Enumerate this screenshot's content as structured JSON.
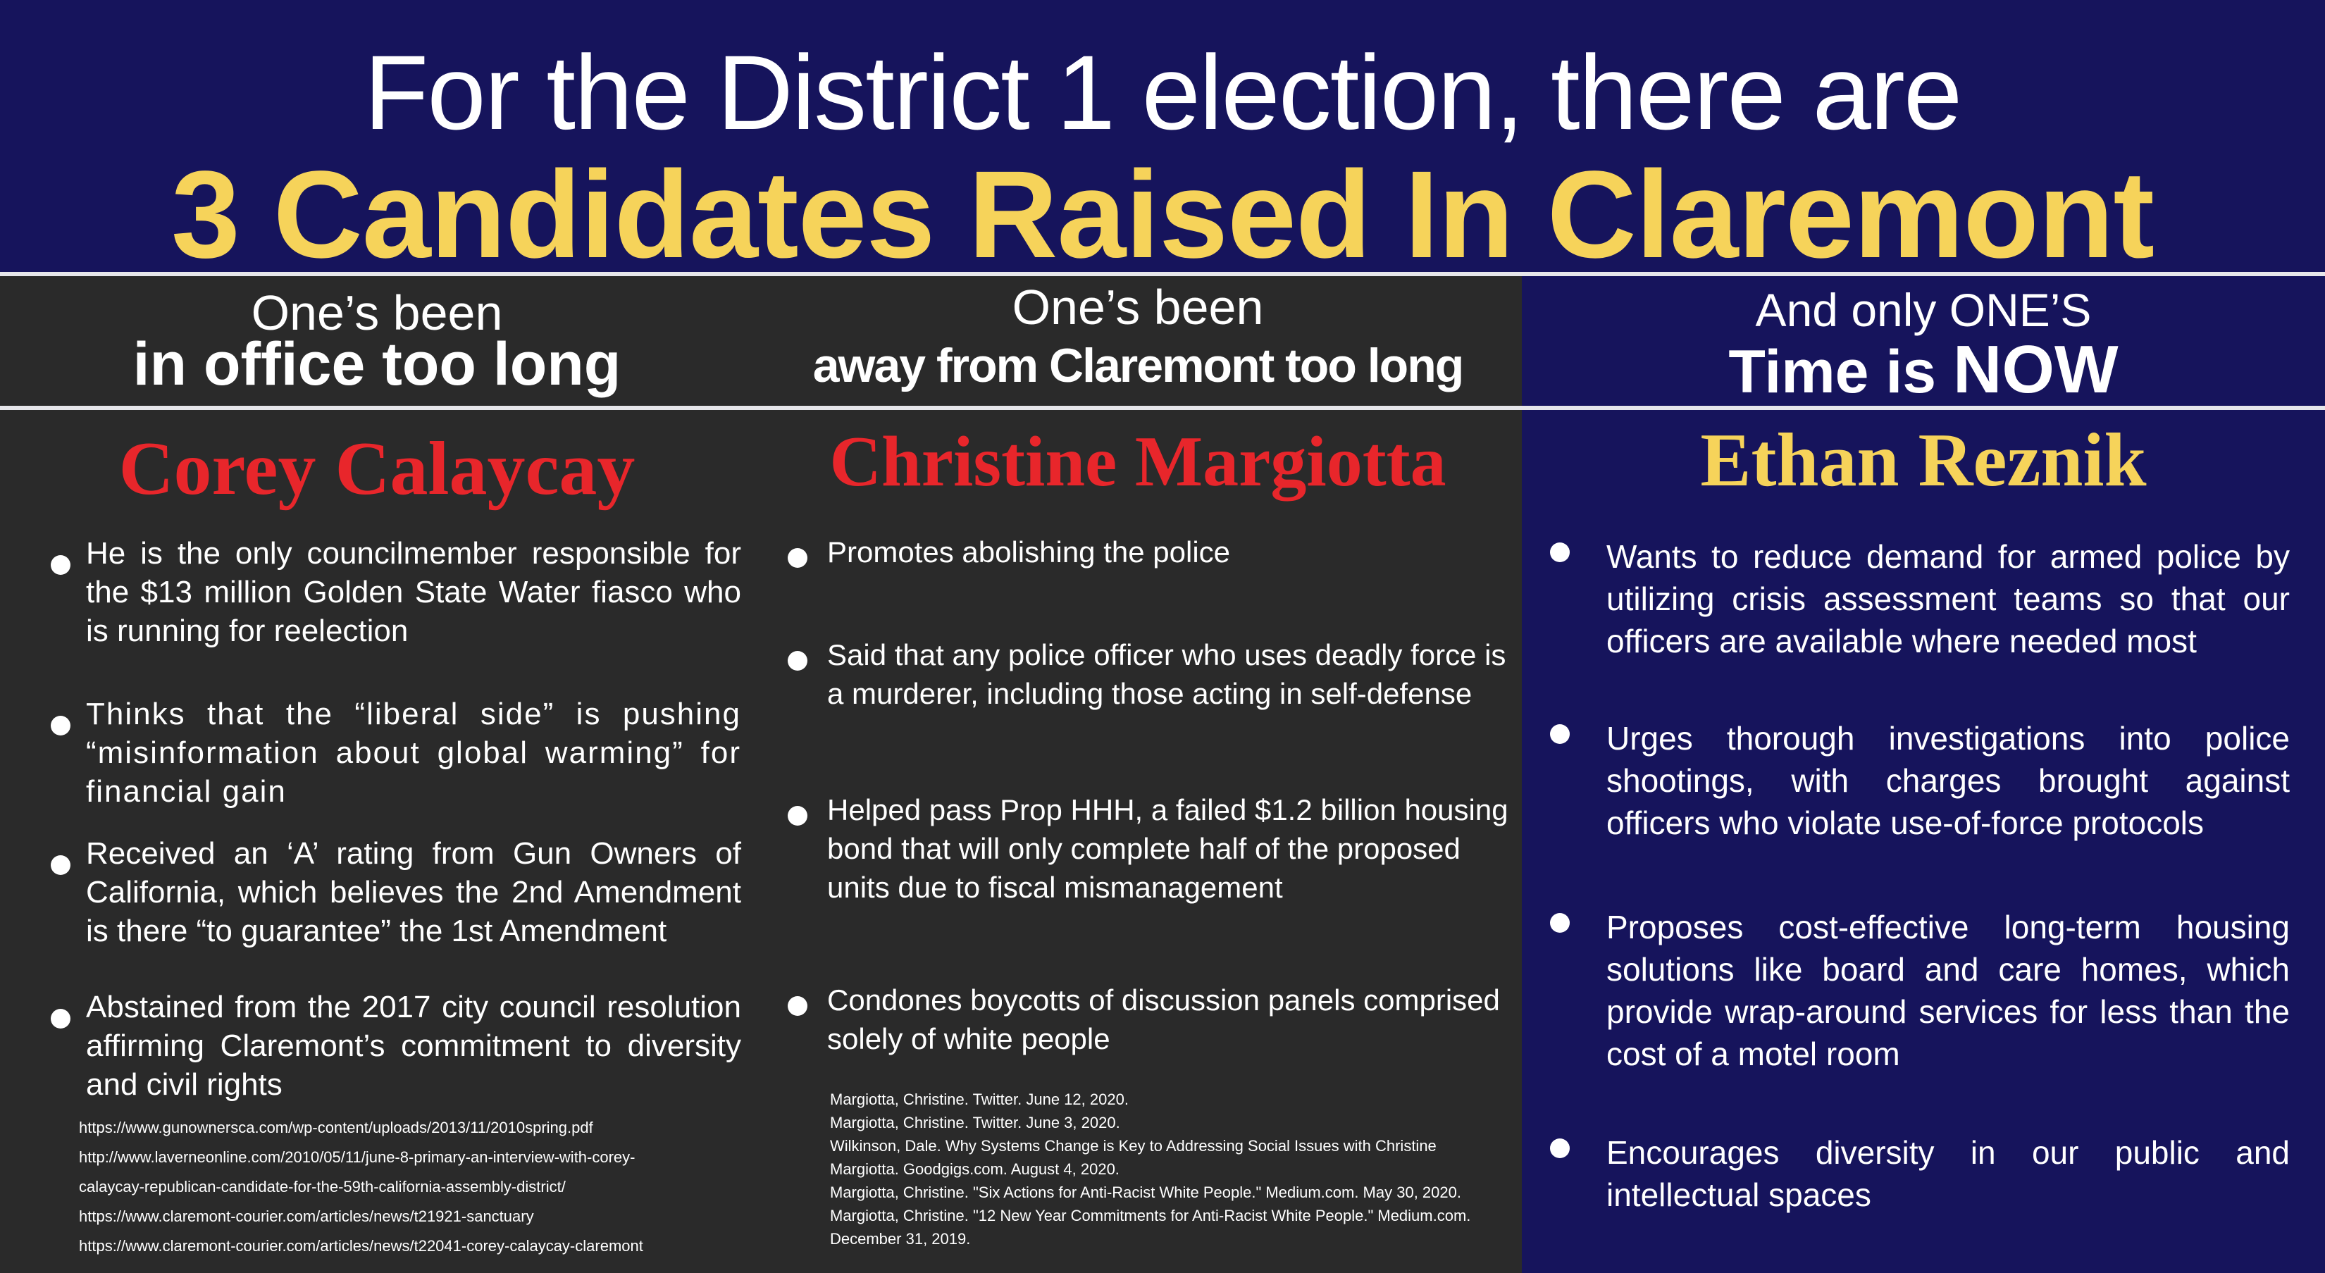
{
  "header": {
    "line1": "For the District 1 election, there are",
    "line2": "3 Candidates Raised In Claremont"
  },
  "colors": {
    "navy": "#16145c",
    "charcoal": "#2a2a2a",
    "gold": "#f6d35a",
    "red": "#e8262b",
    "white": "#ffffff"
  },
  "columns": [
    {
      "tagline1": "One’s been",
      "tagline2": "in office too long",
      "candidate": "Corey Calaycay",
      "bullets": [
        "He is the only councilmember responsible for the $13 million Golden State Water fiasco who is running for reelection",
        "Thinks that the “liberal side” is pushing “misinformation about global warming” for financial gain",
        "Received an ‘A’ rating from Gun Owners of California, which believes the 2nd Amendment is there “to guarantee” the 1st Amendment",
        "Abstained from the 2017 city council resolution affirming Claremont’s commitment to diversity and civil rights"
      ],
      "references": [
        "https://www.gunownersca.com/wp-content/uploads/2013/11/2010spring.pdf",
        "http://www.laverneonline.com/2010/05/11/june-8-primary-an-interview-with-corey-",
        "calaycay-republican-candidate-for-the-59th-california-assembly-district/",
        "https://www.claremont-courier.com/articles/news/t21921-sanctuary",
        "https://www.claremont-courier.com/articles/news/t22041-corey-calaycay-claremont"
      ]
    },
    {
      "tagline1": "One’s been",
      "tagline2": "away from Claremont too long",
      "candidate": "Christine Margiotta",
      "bullets": [
        "Promotes abolishing the police",
        "Said that any police officer who uses deadly force is a murderer, including those acting in self-defense",
        "Helped pass Prop HHH, a failed $1.2 billion housing bond that will only complete half of the proposed units due to fiscal mismanagement",
        "Condones boycotts of discussion panels comprised solely of white people"
      ],
      "references": [
        "Margiotta, Christine. Twitter. June 12, 2020.",
        "Margiotta, Christine. Twitter. June 3, 2020.",
        "Wilkinson, Dale. Why Systems Change is Key to Addressing Social Issues with Christine",
        "Margiotta. Goodgigs.com. August 4, 2020.",
        "Margiotta, Christine. \"Six Actions for Anti-Racist White People.\" Medium.com. May 30, 2020.",
        "Margiotta, Christine. \"12 New Year Commitments for Anti-Racist White People.\" Medium.com.",
        "December 31, 2019."
      ]
    },
    {
      "tagline1": "And only ONE’S",
      "tagline2a": "Time is ",
      "tagline2b": "NOW",
      "candidate": "Ethan Reznik",
      "bullets": [
        "Wants to reduce demand for armed police by utilizing crisis assessment teams so that our officers are available where needed most",
        "Urges thorough investigations into police shootings, with charges brought against officers who violate use-of-force protocols",
        "Proposes cost-effective long-term housing solutions like board and care homes, which provide wrap-around services for less than the cost of a motel room",
        "Encourages diversity in our public and intellectual spaces"
      ]
    }
  ]
}
